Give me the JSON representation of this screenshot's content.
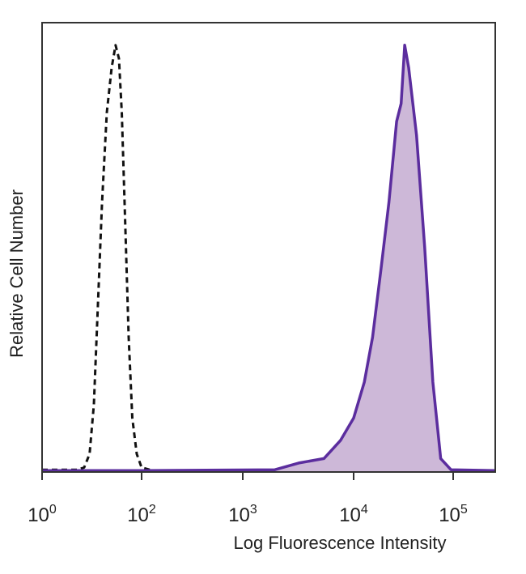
{
  "chart_data": {
    "type": "line",
    "x_label": "Log Fluorescence Intensity",
    "y_label": "Relative Cell Number",
    "xscale": "biexponential",
    "xlim": [
      1,
      262144
    ],
    "xticks": [
      {
        "value": 1,
        "label": "10",
        "exponent": "0"
      },
      {
        "value": 100,
        "label": "10",
        "exponent": "2"
      },
      {
        "value": 1000,
        "label": "10",
        "exponent": "3"
      },
      {
        "value": 10000,
        "label": "10",
        "exponent": "4"
      },
      {
        "value": 100000,
        "label": "10",
        "exponent": "5"
      }
    ],
    "ylim": [
      0,
      100
    ],
    "series": [
      {
        "color": "#111111",
        "dashed": true,
        "fill": null,
        "x": [
          1,
          5,
          7,
          9,
          11,
          13,
          16,
          20,
          25,
          30,
          35,
          40,
          47,
          55,
          65,
          80,
          100,
          130,
          1000,
          10000,
          100000,
          262144
        ],
        "values": [
          0.5,
          0.5,
          1,
          4,
          15,
          35,
          60,
          80,
          90,
          95,
          92,
          80,
          55,
          30,
          12,
          4,
          1,
          0.3,
          0.3,
          0.5,
          0.3,
          0.3
        ]
      },
      {
        "color": "#5b2d9e",
        "dashed": false,
        "fill": "#cdb8d8",
        "x": [
          1,
          100,
          1950,
          3200,
          5400,
          7600,
          10000,
          12800,
          15500,
          18800,
          22600,
          27000,
          30000,
          32600,
          35700,
          42800,
          51700,
          62500,
          75000,
          95000,
          262144
        ],
        "values": [
          0.3,
          0.3,
          0.5,
          2,
          3,
          7,
          12,
          20,
          30,
          45,
          60,
          78,
          82,
          95,
          90,
          75,
          50,
          20,
          3,
          0.5,
          0.3
        ]
      }
    ]
  }
}
